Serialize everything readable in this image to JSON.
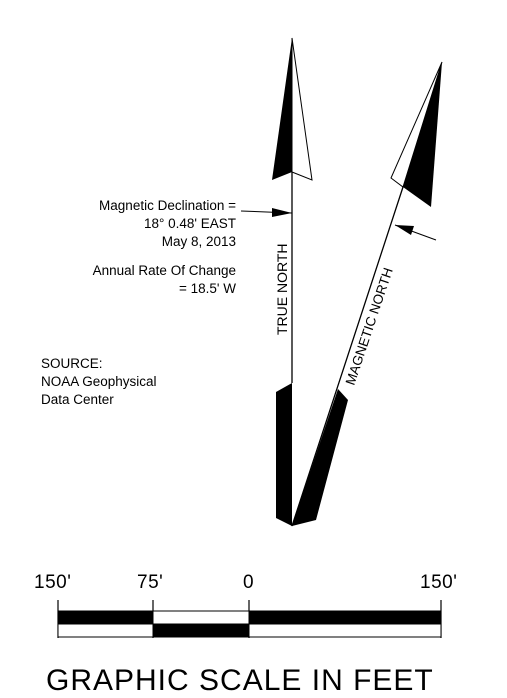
{
  "declination": {
    "line1": "Magnetic Declination =",
    "line2": "18° 0.48' EAST",
    "line3": "May 8, 2013",
    "rate_line1": "Annual Rate Of Change",
    "rate_line2": "= 18.5' W"
  },
  "arrows": {
    "true_north": "TRUE NORTH",
    "magnetic_north": "MAGNETIC NORTH"
  },
  "source": {
    "line1": "SOURCE:",
    "line2": "NOAA Geophysical",
    "line3": "Data Center"
  },
  "scale": {
    "labels": [
      "150'",
      "75'",
      "0",
      "150'"
    ],
    "title": "GRAPHIC SCALE IN FEET"
  }
}
